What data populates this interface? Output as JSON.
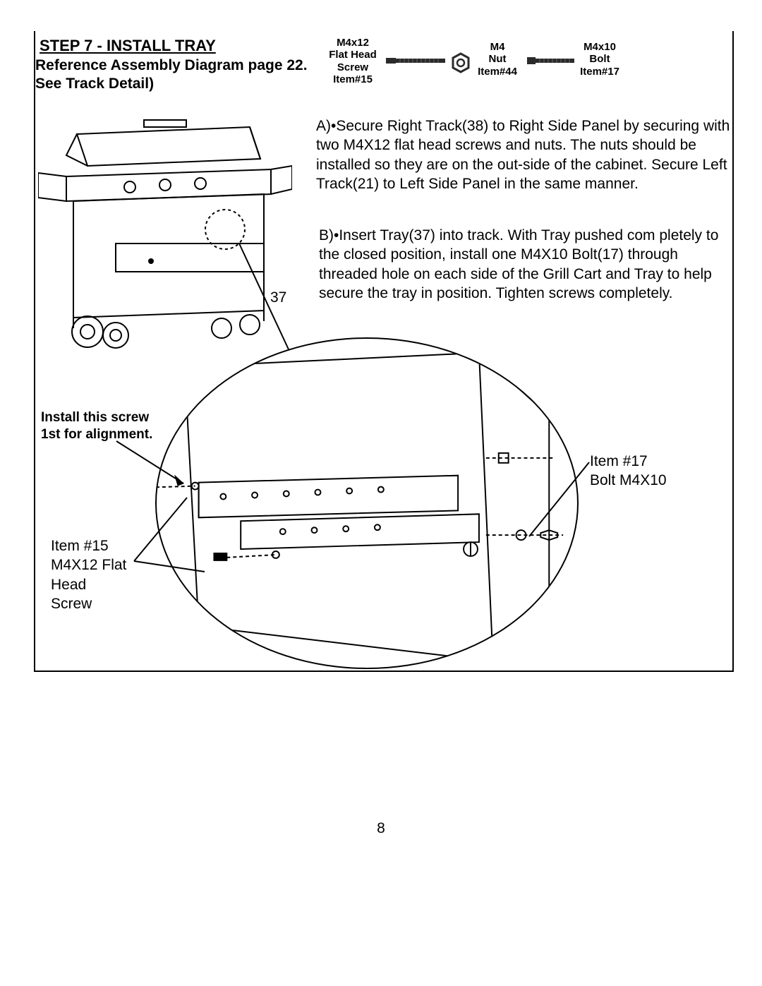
{
  "page_number": "8",
  "step_title": "STEP 7 - INSTALL TRAY",
  "subheading": "Reference Assembly Diagram page 22.\nSee Track Detail)",
  "hardware": {
    "screw1": {
      "line1": "M4x12",
      "line2": "Flat Head",
      "line3": "Screw",
      "line4": "Item#15"
    },
    "nut": {
      "line1": "M4",
      "line2": "Nut",
      "line3": "Item#44"
    },
    "screw2": {
      "line1": "M4x10",
      "line2": "Bolt",
      "line3": "Item#17"
    }
  },
  "paragraph_a": "A)•Secure Right Track(38) to Right Side Panel by securing with two M4X12 flat head screws and nuts. The nuts should be installed so they are on the out-side of the cabinet. Secure Left Track(21) to Left Side Panel in the same manner.",
  "paragraph_b": "B)•Insert Tray(37) into track. With Tray pushed com pletely to the closed position, install one M4X10 Bolt(17) through threaded hole on each side of the Grill Cart and Tray to help secure the tray in position. Tighten screws completely.",
  "callouts": {
    "install_first": "Install this screw\n1st for alignment.",
    "item15": "Item #15\nM4X12 Flat\nHead\nScrew",
    "item17": "Item #17\nBolt M4X10",
    "num37": "37"
  },
  "colors": {
    "text": "#000000",
    "bg": "#ffffff",
    "hw_fill": "#3a3a3a"
  }
}
